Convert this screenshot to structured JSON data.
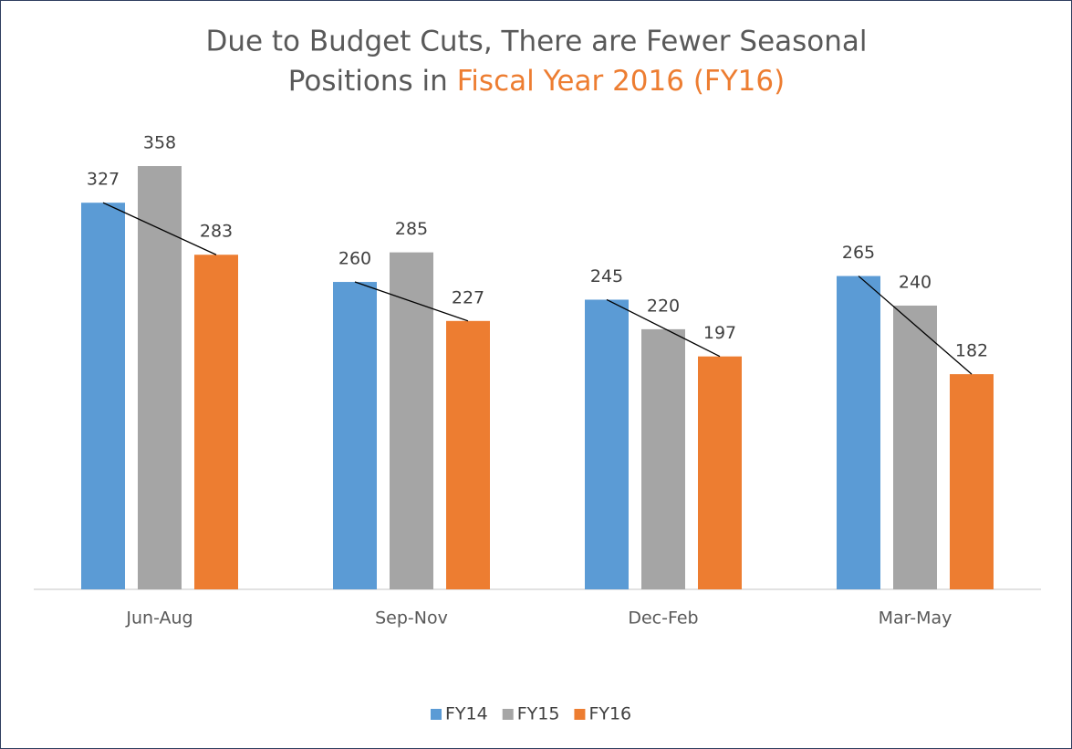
{
  "chart_data": {
    "type": "bar",
    "title": {
      "line1": "Due to Budget Cuts, There are Fewer Seasonal",
      "line2": "Positions in",
      "highlight": "Fiscal Year 2016 (FY16)",
      "highlight_color": "#ed7d31"
    },
    "categories": [
      "Jun-Aug",
      "Sep-Nov",
      "Dec-Feb",
      "Mar-May"
    ],
    "series": [
      {
        "name": "FY14",
        "color": "#5b9bd5",
        "values": [
          327,
          260,
          245,
          265
        ]
      },
      {
        "name": "FY15",
        "color": "#a5a5a5",
        "values": [
          358,
          285,
          220,
          240
        ]
      },
      {
        "name": "FY16",
        "color": "#ed7d31",
        "values": [
          283,
          227,
          197,
          182
        ]
      }
    ],
    "ylim": [
      0,
      400
    ],
    "legend": "bottom"
  }
}
